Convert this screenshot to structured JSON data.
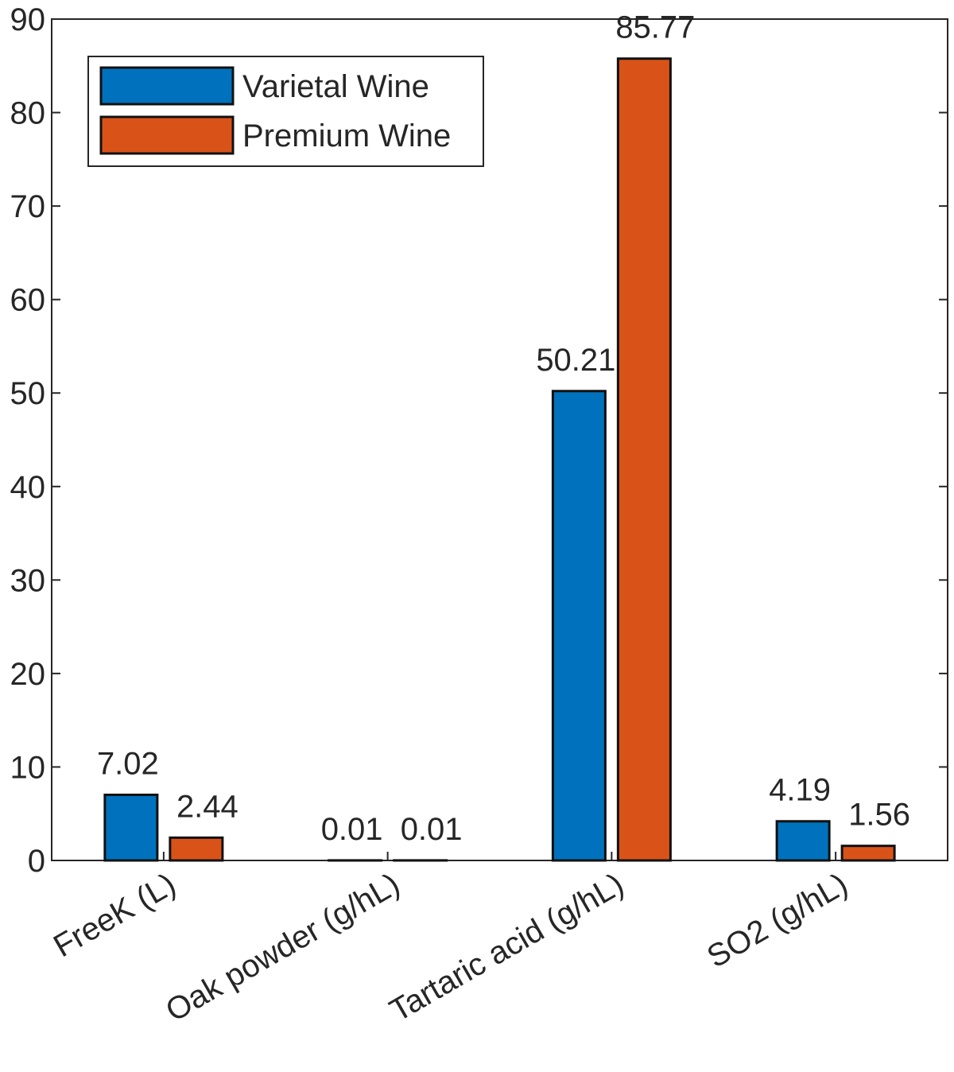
{
  "chart_data": {
    "type": "bar",
    "title": "",
    "xlabel": "",
    "ylabel": "",
    "categories": [
      "FreeK (L)",
      "Oak powder (g/hL)",
      "Tartaric acid (g/hL)",
      "SO2 (g/hL)"
    ],
    "series": [
      {
        "name": "Varietal Wine",
        "color": "#0072BD",
        "values": [
          7.02,
          0.01,
          50.21,
          4.19
        ],
        "labels": [
          "7.02",
          "0.01",
          "50.21",
          "4.19"
        ]
      },
      {
        "name": "Premium Wine",
        "color": "#D95319",
        "values": [
          2.44,
          0.01,
          85.77,
          1.56
        ],
        "labels": [
          "2.44",
          "0.01",
          "85.77",
          "1.56"
        ]
      }
    ],
    "ylim": [
      0,
      90
    ],
    "yticks": [
      "0",
      "10",
      "20",
      "30",
      "40",
      "50",
      "60",
      "70",
      "80",
      "90"
    ],
    "grid": false,
    "legend": "top-left"
  }
}
